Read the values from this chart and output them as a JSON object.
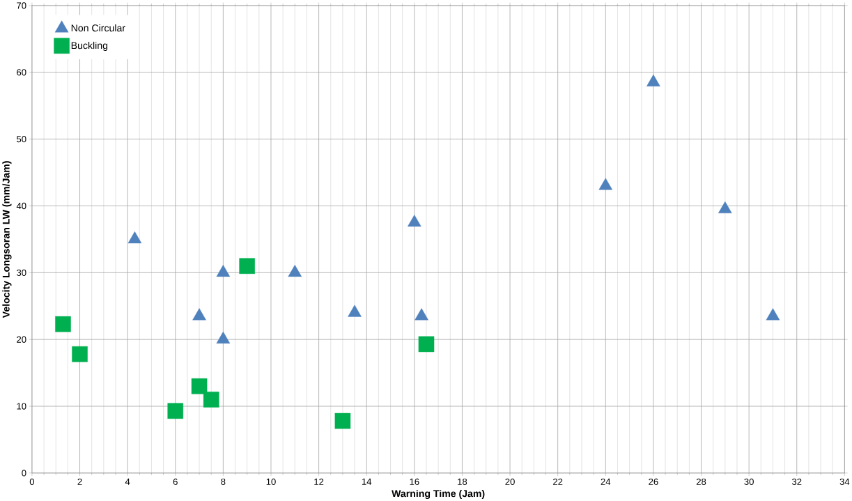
{
  "chart_data": {
    "type": "scatter",
    "xlabel": "Warning Time (Jam)",
    "ylabel": "Velocity Longsoran LW (mm/Jam)",
    "xlim": [
      0,
      34
    ],
    "xticks": [
      0,
      2,
      4,
      6,
      8,
      10,
      12,
      14,
      16,
      18,
      20,
      22,
      24,
      26,
      28,
      30,
      32,
      34
    ],
    "ylim": [
      0,
      70
    ],
    "yticks": [
      0,
      10,
      20,
      30,
      40,
      50,
      60,
      70
    ],
    "grid": true,
    "legend": "top left",
    "series": [
      {
        "name": "Non Circular",
        "color": "#4f81bd",
        "marker": "triangle",
        "x": [
          4.3,
          7,
          8,
          8,
          11,
          13.5,
          16,
          16.3,
          24,
          26,
          29,
          31
        ],
        "values": [
          35,
          23.5,
          30,
          20,
          30,
          24,
          37.5,
          23.5,
          43,
          58.5,
          39.5,
          23.5
        ]
      },
      {
        "name": "Buckling",
        "color": "#00b050",
        "marker": "square",
        "x": [
          1.3,
          2,
          6,
          7,
          7.5,
          9,
          13,
          16.5
        ],
        "values": [
          22.3,
          17.8,
          9.3,
          13,
          11,
          31,
          7.8,
          19.3
        ]
      }
    ]
  }
}
